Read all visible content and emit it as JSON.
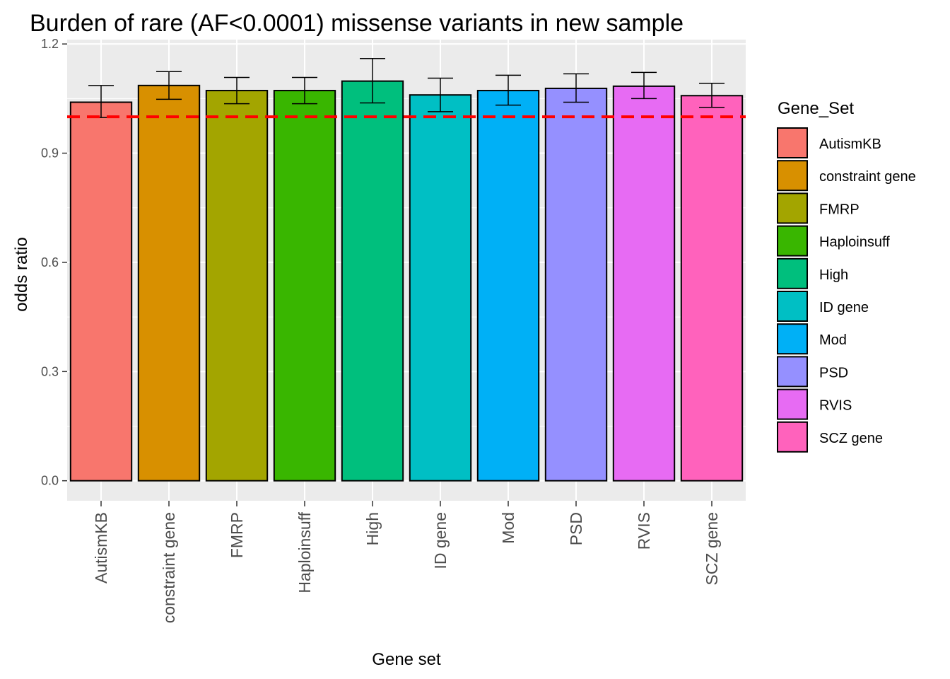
{
  "chart_data": {
    "type": "bar",
    "title": "Burden of rare (AF<0.0001) missense variants in new sample",
    "xlabel": "Gene set",
    "ylabel": "odds ratio",
    "ylim": [
      -0.055,
      1.212
    ],
    "yticks": [
      0.0,
      0.3,
      0.6,
      0.9,
      1.2
    ],
    "ytick_labels": [
      "0.0",
      "0.3",
      "0.6",
      "0.9",
      "1.2"
    ],
    "categories": [
      "AutismKB",
      "constraint gene",
      "FMRP",
      "Haploinsuff",
      "High",
      "ID gene",
      "Mod",
      "PSD",
      "RVIS",
      "SCZ gene"
    ],
    "values": [
      1.04,
      1.086,
      1.072,
      1.072,
      1.098,
      1.06,
      1.072,
      1.078,
      1.084,
      1.058
    ],
    "error_low": [
      0.998,
      1.048,
      1.036,
      1.036,
      1.038,
      1.014,
      1.032,
      1.04,
      1.05,
      1.026
    ],
    "error_high": [
      1.086,
      1.124,
      1.108,
      1.108,
      1.16,
      1.106,
      1.114,
      1.118,
      1.122,
      1.092
    ],
    "colors": [
      "#F8766D",
      "#D89000",
      "#A3A500",
      "#39B600",
      "#00BF7D",
      "#00BFC4",
      "#00B0F6",
      "#9590FF",
      "#E76BF3",
      "#FF62BC"
    ],
    "reference_line": {
      "y": 1.0,
      "color": "#ff0000",
      "style": "dashed"
    },
    "legend": {
      "title": "Gene_Set",
      "placement": "right",
      "entries": [
        "AutismKB",
        "constraint gene",
        "FMRP",
        "Haploinsuff",
        "High",
        "ID gene",
        "Mod",
        "PSD",
        "RVIS",
        "SCZ gene"
      ]
    },
    "grid": true,
    "panel_background": "#ebebeb"
  }
}
